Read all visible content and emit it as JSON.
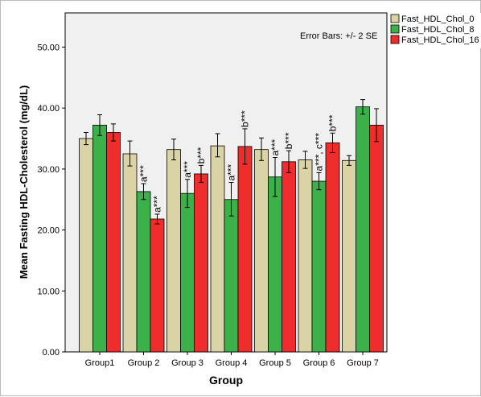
{
  "chart_data": {
    "type": "bar",
    "title": "",
    "xlabel": "Group",
    "ylabel": "Mean Fasting HDL-Cholesterol (mg/dL)",
    "ylim": [
      0,
      55
    ],
    "yticks": [
      "0.00",
      "10.00",
      "20.00",
      "30.00",
      "40.00",
      "50.00"
    ],
    "grid": false,
    "legend_position": "top-right",
    "note": "Error Bars: +/- 2 SE",
    "categories": [
      "Group1",
      "Group 2",
      "Group 3",
      "Group 4",
      "Group 5",
      "Group 6",
      "Group 7"
    ],
    "series": [
      {
        "name": "Fast_HDL_Chol_0",
        "color": "#d9d3a5",
        "values": [
          35.0,
          32.5,
          33.2,
          33.8,
          33.2,
          31.5,
          31.4
        ],
        "err_low": [
          34.0,
          30.5,
          31.5,
          32.0,
          31.4,
          30.1,
          30.6
        ],
        "err_high": [
          36.0,
          34.6,
          34.9,
          35.8,
          35.1,
          32.9,
          32.2
        ],
        "annotations": [
          "",
          "",
          "",
          "",
          "",
          "",
          ""
        ]
      },
      {
        "name": "Fast_HDL_Chol_8",
        "color": "#3cb14a",
        "values": [
          37.2,
          26.3,
          26.0,
          25.0,
          28.7,
          28.0,
          40.2
        ],
        "err_low": [
          35.5,
          25.0,
          23.7,
          22.3,
          25.5,
          26.6,
          39.0
        ],
        "err_high": [
          38.9,
          27.6,
          28.3,
          27.8,
          31.9,
          29.4,
          41.4
        ],
        "annotations": [
          "",
          "a***",
          "a***",
          "a***",
          "a***",
          "a***, c***",
          ""
        ]
      },
      {
        "name": "Fast_HDL_Chol_16",
        "color": "#ef2d2d",
        "values": [
          36.0,
          21.8,
          29.2,
          33.7,
          31.2,
          34.3,
          37.2
        ],
        "err_low": [
          34.6,
          21.0,
          27.8,
          30.8,
          29.4,
          32.7,
          34.5
        ],
        "err_high": [
          37.4,
          22.6,
          30.6,
          36.6,
          33.0,
          35.9,
          39.9
        ],
        "annotations": [
          "",
          "a***",
          "b***",
          "b***",
          "b***",
          "b***",
          ""
        ]
      }
    ]
  }
}
